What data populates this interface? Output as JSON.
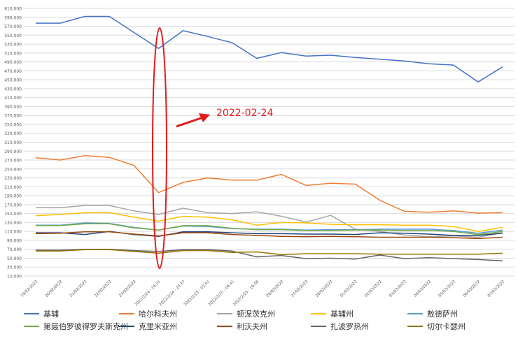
{
  "chart_data": {
    "type": "line",
    "title": "",
    "xlabel": "",
    "ylabel": "",
    "ylim": [
      10000,
      610000
    ],
    "y_tick_step": 20000,
    "y_tick_labels": [
      "10,000",
      "30,000",
      "50,000",
      "70,000",
      "90,000",
      "110,000",
      "130,000",
      "150,000",
      "170,000",
      "190,000",
      "210,000",
      "230,000",
      "250,000",
      "270,000",
      "290,000",
      "310,000",
      "330,000",
      "350,000",
      "370,000",
      "390,000",
      "410,000",
      "430,000",
      "450,000",
      "470,000",
      "490,000",
      "510,000",
      "530,000",
      "550,000",
      "570,000",
      "590,000",
      "610,000"
    ],
    "y_ticks": [
      10000,
      30000,
      50000,
      70000,
      90000,
      110000,
      130000,
      150000,
      170000,
      190000,
      210000,
      230000,
      250000,
      270000,
      290000,
      310000,
      330000,
      350000,
      370000,
      390000,
      410000,
      430000,
      450000,
      470000,
      490000,
      510000,
      530000,
      550000,
      570000,
      590000,
      610000
    ],
    "grid": true,
    "legend_position": "bottom",
    "categories": [
      "19/02/2022",
      "20/02/2022",
      "21/02/2022",
      "22/02/2022",
      "23/02/2022",
      "2022/2/24 - 16:31",
      "2022/2/24 - 20:37",
      "2022/2/25 - 02:51",
      "2022/2/25 - 08:41",
      "2022/2/25 - 16:06",
      "26/02/2022",
      "27/02/2022",
      "28/02/2022",
      "01/03/2022",
      "02/03/2022",
      "03/03/2022",
      "04/03/2022",
      "05/03/2022",
      "06/03/2022",
      "07/03/2022"
    ],
    "series": [
      {
        "name": "基辅",
        "color": "#4472c4",
        "values": [
          577000,
          577000,
          592000,
          592000,
          556000,
          520000,
          560000,
          547000,
          533000,
          498000,
          511000,
          503000,
          505000,
          500000,
          496000,
          492000,
          486000,
          483000,
          445000,
          479000
        ]
      },
      {
        "name": "哈尔科夫州",
        "color": "#ed7d31",
        "values": [
          275000,
          270000,
          280000,
          276000,
          258000,
          197000,
          220000,
          230000,
          225000,
          225000,
          238000,
          213000,
          218000,
          216000,
          180000,
          155000,
          153000,
          156000,
          151000,
          152000
        ]
      },
      {
        "name": "顿涅茨克州",
        "color": "#a5a5a5",
        "values": [
          163000,
          163000,
          168000,
          168000,
          156000,
          148000,
          162000,
          152000,
          150000,
          154000,
          144000,
          131000,
          146000,
          115000,
          110000,
          102000,
          98000,
          100000,
          97000,
          107000
        ]
      },
      {
        "name": "基辅州",
        "color": "#ffc000",
        "values": [
          145000,
          148000,
          152000,
          152000,
          142000,
          133000,
          144000,
          142000,
          136000,
          124000,
          130000,
          129000,
          126000,
          125000,
          125000,
          124000,
          124000,
          121000,
          110000,
          119000
        ]
      },
      {
        "name": "敖德萨州",
        "color": "#5b9bd5",
        "values": [
          124000,
          124000,
          129000,
          128000,
          119000,
          113000,
          122000,
          121000,
          116000,
          115000,
          115000,
          113000,
          114000,
          114000,
          115000,
          115000,
          115000,
          112000,
          106000,
          113000
        ]
      },
      {
        "name": "第聂伯罗彼得罗夫斯克州",
        "color": "#70ad47",
        "values": [
          123000,
          123000,
          127000,
          127000,
          118000,
          113000,
          123000,
          123000,
          117000,
          114000,
          114000,
          112000,
          112000,
          113000,
          113000,
          112000,
          112000,
          110000,
          103000,
          110000
        ]
      },
      {
        "name": "克里米亚州",
        "color": "#264478",
        "values": [
          107000,
          107000,
          103000,
          110000,
          103000,
          99000,
          109000,
          109000,
          107000,
          105000,
          105000,
          104000,
          104000,
          103000,
          107000,
          106000,
          104000,
          101000,
          101000,
          106000
        ]
      },
      {
        "name": "利沃夫州",
        "color": "#9e480e",
        "values": [
          105000,
          106000,
          109000,
          109000,
          104000,
          100000,
          107000,
          107000,
          103000,
          101000,
          99000,
          98000,
          99000,
          98000,
          97000,
          97000,
          97000,
          96000,
          94000,
          97000
        ]
      },
      {
        "name": "扎波罗热州",
        "color": "#636363",
        "values": [
          68000,
          68000,
          70000,
          70000,
          67000,
          65000,
          69000,
          69000,
          66000,
          53000,
          56000,
          49000,
          50000,
          48000,
          57000,
          49000,
          51000,
          49000,
          47000,
          44000
        ]
      },
      {
        "name": "切尔卡瑟州",
        "color": "#997300",
        "values": [
          66000,
          66000,
          69000,
          69000,
          65000,
          61000,
          67000,
          67000,
          63000,
          64000,
          58000,
          60000,
          60000,
          60000,
          59000,
          59000,
          59000,
          59000,
          59000,
          61000
        ]
      }
    ],
    "annotations": [
      {
        "text": "2022-02-24",
        "color": "#e31a1c",
        "type": "arrow-label"
      },
      {
        "type": "ellipse-highlight",
        "color": "#e31a1c",
        "target_category": "2022/2/24 - 16:31"
      }
    ]
  }
}
